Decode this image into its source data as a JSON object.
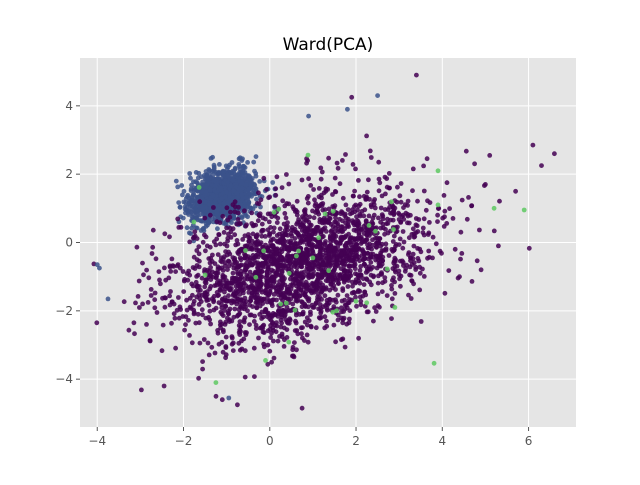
{
  "chart_data": {
    "type": "scatter",
    "title": "Ward(PCA)",
    "xlabel": "",
    "ylabel": "",
    "xlim": [
      -4.4,
      7.1
    ],
    "ylim": [
      -5.4,
      5.4
    ],
    "x_ticks": [
      -4,
      -2,
      0,
      2,
      4,
      6
    ],
    "y_ticks": [
      -4,
      -2,
      0,
      2,
      4
    ],
    "x_tick_labels": [
      "−4",
      "−2",
      "0",
      "2",
      "4",
      "6"
    ],
    "y_tick_labels": [
      "−4",
      "−2",
      "0",
      "2",
      "4"
    ],
    "grid": true,
    "legend": "none",
    "colors": {
      "background": "#e5e5e5",
      "grid": "#ffffff",
      "tick": "#555555"
    },
    "clusters": [
      {
        "color": "#3b528b",
        "count": 1400,
        "center": [
          -1.1,
          1.35
        ],
        "axis1": [
          2.05,
          1.7
        ],
        "axis2": [
          -0.4,
          0.48
        ],
        "std1": 0.42,
        "std2": 0.32
      },
      {
        "color": "#440154",
        "count": 2400,
        "center": [
          0.7,
          -0.65
        ],
        "axis1": [
          0.95,
          0.5
        ],
        "axis2": [
          -0.5,
          0.95
        ],
        "std1": 1.55,
        "std2": 0.9
      },
      {
        "color": "#5ec962",
        "count": 25,
        "center": [
          1.5,
          -0.3
        ],
        "axis1": [
          1,
          0
        ],
        "axis2": [
          0,
          1
        ],
        "std1": 1.6,
        "std2": 1.4
      }
    ],
    "outlier_points": [
      {
        "x": 3.4,
        "y": 4.9,
        "c": "#440154"
      },
      {
        "x": 1.9,
        "y": 4.25,
        "c": "#440154"
      },
      {
        "x": 2.5,
        "y": 4.3,
        "c": "#3b528b"
      },
      {
        "x": 6.3,
        "y": 2.25,
        "c": "#440154"
      },
      {
        "x": 6.6,
        "y": 2.6,
        "c": "#440154"
      },
      {
        "x": 6.1,
        "y": 2.85,
        "c": "#440154"
      },
      {
        "x": 5.9,
        "y": 0.95,
        "c": "#5ec962"
      },
      {
        "x": 5.7,
        "y": 1.5,
        "c": "#440154"
      },
      {
        "x": 5.2,
        "y": 1.0,
        "c": "#5ec962"
      },
      {
        "x": 5.0,
        "y": 1.7,
        "c": "#440154"
      },
      {
        "x": 5.1,
        "y": 2.55,
        "c": "#440154"
      },
      {
        "x": 5.3,
        "y": -0.1,
        "c": "#440154"
      },
      {
        "x": 4.9,
        "y": -0.8,
        "c": "#440154"
      },
      {
        "x": 4.3,
        "y": -0.2,
        "c": "#440154"
      },
      {
        "x": 3.9,
        "y": 2.1,
        "c": "#5ec962"
      },
      {
        "x": 3.9,
        "y": 1.1,
        "c": "#5ec962"
      },
      {
        "x": 4.4,
        "y": -1.0,
        "c": "#440154"
      },
      {
        "x": -1.1,
        "y": -4.6,
        "c": "#440154"
      },
      {
        "x": -0.75,
        "y": -4.75,
        "c": "#440154"
      },
      {
        "x": 0.75,
        "y": -4.85,
        "c": "#440154"
      },
      {
        "x": -1.25,
        "y": -4.1,
        "c": "#5ec962"
      },
      {
        "x": -0.95,
        "y": -4.55,
        "c": "#3b528b"
      },
      {
        "x": -2.45,
        "y": -4.2,
        "c": "#440154"
      },
      {
        "x": -3.15,
        "y": -2.35,
        "c": "#440154"
      },
      {
        "x": -3.75,
        "y": -1.65,
        "c": "#3b528b"
      },
      {
        "x": -3.95,
        "y": -0.75,
        "c": "#3b528b"
      },
      {
        "x": -4.0,
        "y": -0.65,
        "c": "#3b528b"
      },
      {
        "x": -0.1,
        "y": -3.45,
        "c": "#5ec962"
      },
      {
        "x": 0.25,
        "y": -1.8,
        "c": "#5ec962"
      },
      {
        "x": 0.45,
        "y": -0.9,
        "c": "#5ec962"
      },
      {
        "x": 1.0,
        "y": -0.45,
        "c": "#5ec962"
      },
      {
        "x": 1.55,
        "y": -2.0,
        "c": "#5ec962"
      },
      {
        "x": -1.5,
        "y": -0.95,
        "c": "#5ec962"
      },
      {
        "x": 2.3,
        "y": 0.5,
        "c": "#5ec962"
      },
      {
        "x": 2.9,
        "y": -1.9,
        "c": "#5ec962"
      },
      {
        "x": 0.9,
        "y": 3.7,
        "c": "#3b528b"
      },
      {
        "x": 1.8,
        "y": 3.9,
        "c": "#3b528b"
      }
    ]
  }
}
